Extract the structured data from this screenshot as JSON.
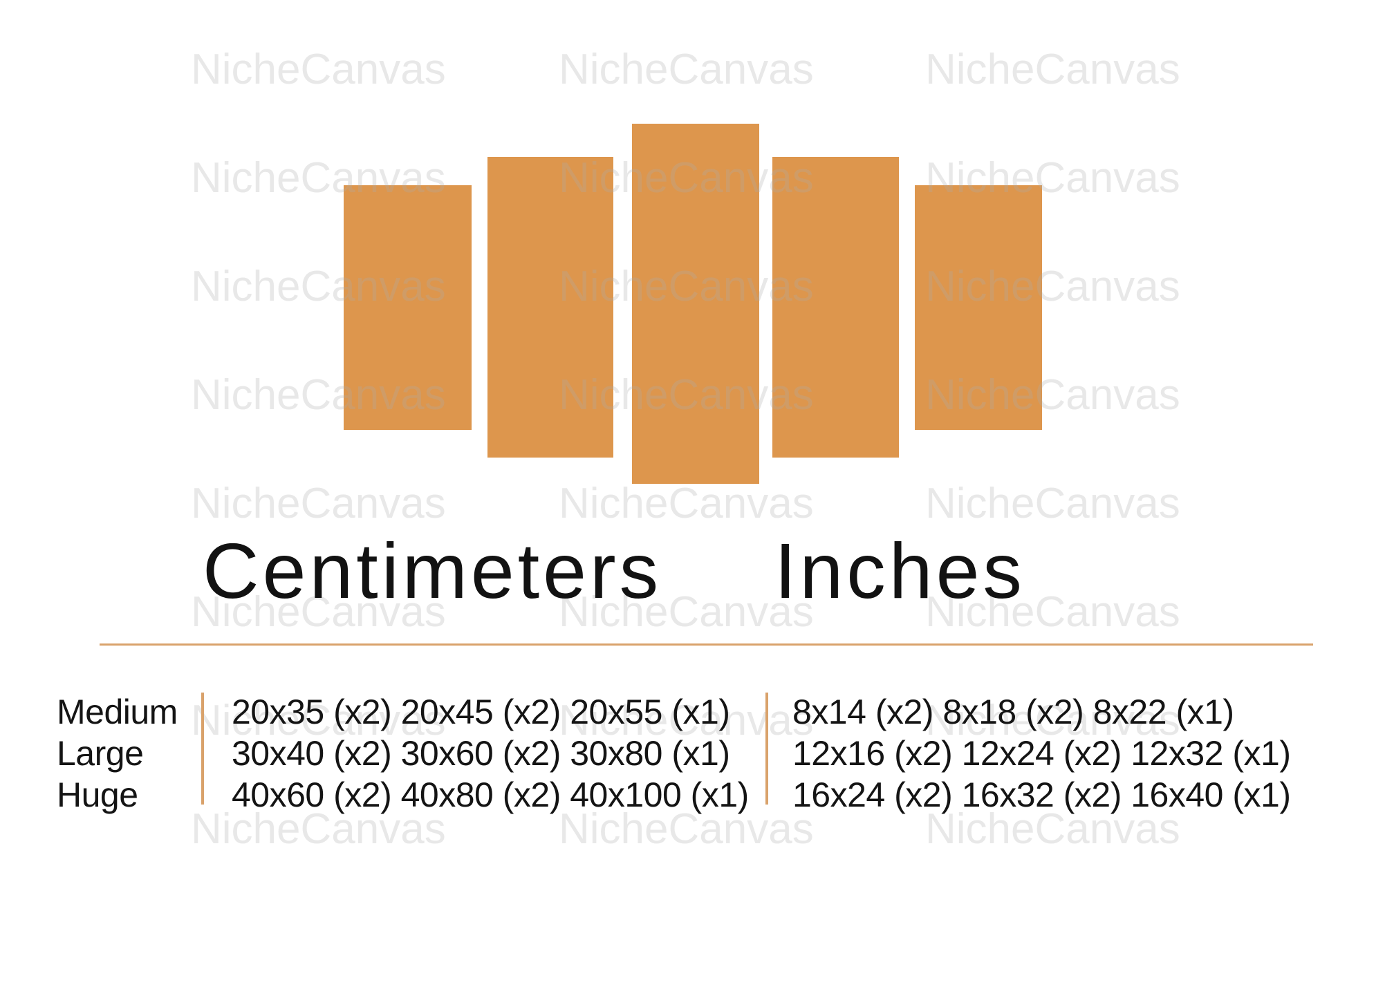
{
  "brand_watermark": {
    "text": "NicheCanvas",
    "color": "rgba(172,172,172,0.28)"
  },
  "panels": {
    "count": 5,
    "color": "#DD964D"
  },
  "headings": {
    "centimeters": "Centimeters",
    "inches": "Inches"
  },
  "accent_color": "#D9A26B",
  "size_table": {
    "rows": [
      {
        "label": "Medium",
        "cm": "20x35 (x2) 20x45 (x2) 20x55 (x1)",
        "inches": "8x14 (x2) 8x18 (x2) 8x22 (x1)"
      },
      {
        "label": "Large",
        "cm": "30x40 (x2) 30x60 (x2) 30x80 (x1)",
        "inches": "12x16 (x2) 12x24 (x2) 12x32 (x1)"
      },
      {
        "label": "Huge",
        "cm": "40x60 (x2) 40x80 (x2) 40x100 (x1)",
        "inches": "16x24 (x2) 16x32 (x2) 16x40 (x1)"
      }
    ]
  }
}
